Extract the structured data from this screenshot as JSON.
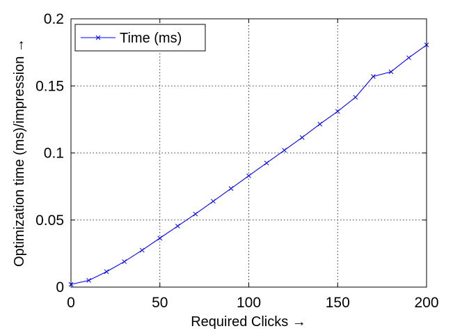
{
  "chart_data": {
    "type": "line",
    "xlabel": "Required Clicks →",
    "ylabel": "Optimization time (ms)/impression →",
    "xlim": [
      0,
      200
    ],
    "ylim": [
      0,
      0.2
    ],
    "x_ticks": [
      0,
      50,
      100,
      150,
      200
    ],
    "y_ticks": [
      0,
      0.05,
      0.1,
      0.15,
      0.2
    ],
    "x_tick_labels": [
      "0",
      "50",
      "100",
      "150",
      "200"
    ],
    "y_tick_labels": [
      "0",
      "0.05",
      "0.1",
      "0.15",
      "0.2"
    ],
    "grid": true,
    "legend_position": "top-left",
    "series": [
      {
        "name": "Time (ms)",
        "color": "#0000ff",
        "marker": "x",
        "x": [
          0,
          10,
          20,
          30,
          40,
          50,
          60,
          70,
          80,
          90,
          100,
          110,
          120,
          130,
          140,
          150,
          160,
          170,
          180,
          190,
          200
        ],
        "y": [
          0.002,
          0.005,
          0.0115,
          0.019,
          0.0275,
          0.0365,
          0.0455,
          0.0545,
          0.064,
          0.0735,
          0.083,
          0.0925,
          0.102,
          0.1115,
          0.1215,
          0.131,
          0.1415,
          0.157,
          0.1605,
          0.171,
          0.1805
        ]
      }
    ]
  }
}
